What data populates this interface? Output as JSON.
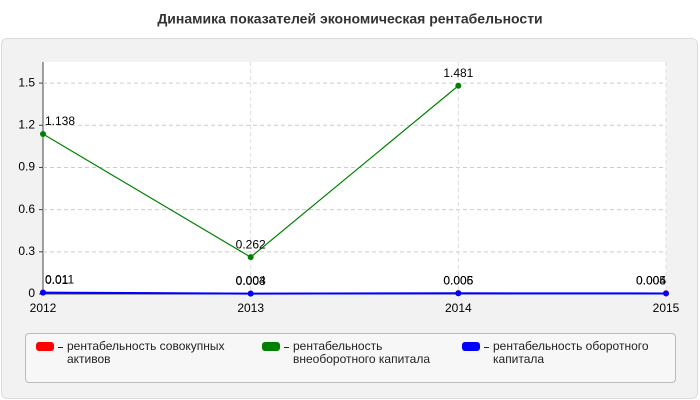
{
  "chart_data": {
    "type": "line",
    "title": "Динамика показателей экономическая рентабельности",
    "categories": [
      "2012",
      "2013",
      "2014",
      "2015"
    ],
    "series": [
      {
        "name": "рентабельность совокупных активов",
        "color": "#ff0000",
        "values": [
          0.011,
          0.004,
          0.006,
          0.005
        ]
      },
      {
        "name": "рентабельность внеоборотного капитала",
        "color": "#008000",
        "values": [
          1.138,
          0.262,
          1.481,
          null
        ]
      },
      {
        "name": "рентабельность оборотного капитала",
        "color": "#0000ff",
        "values": [
          0.01,
          0.003,
          0.005,
          0.004
        ]
      }
    ],
    "ylim": [
      0,
      1.65
    ],
    "yticks": [
      0,
      0.3,
      0.6,
      0.9,
      1.2,
      1.5
    ],
    "grid": true,
    "legend": "bottom"
  }
}
